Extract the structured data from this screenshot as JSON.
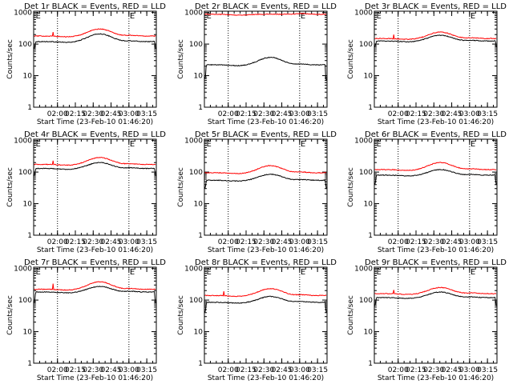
{
  "figure": {
    "colors": {
      "events": "#000000",
      "lld": "#ff0000",
      "axes": "#000000",
      "background": "#ffffff"
    }
  },
  "chart_data": [
    {
      "type": "line",
      "detector": "1r",
      "title": "Det 1r BLACK = Events, RED = LLD",
      "xlabel": "Start Time (23-Feb-10 01:46:20)",
      "ylabel": "Counts/sec",
      "xticks": [
        "02:00",
        "02:15",
        "02:30",
        "02:45",
        "03:00",
        "03:15"
      ],
      "yticks": [
        "1",
        "10",
        "100",
        "1000"
      ],
      "ylim": [
        1,
        1100
      ],
      "scale": "log",
      "time_range_min": [
        -6,
        97
      ],
      "tick_minutes": [
        14,
        29,
        44,
        59,
        74,
        89
      ],
      "vlines_min": [
        14,
        74
      ],
      "annotations": [
        "E",
        "E"
      ],
      "annotation_minutes": [
        -5,
        74
      ],
      "series": [
        {
          "name": "Events",
          "color": "#000000",
          "baseline": 120,
          "peak": 210,
          "start_level": 70,
          "end_level": 70
        },
        {
          "name": "LLD",
          "color": "#ff0000",
          "baseline": 180,
          "peak": 300,
          "spike_value": 240
        }
      ]
    },
    {
      "type": "line",
      "detector": "2r",
      "title": "Det 2r BLACK = Events, RED = LLD",
      "xlabel": "Start Time (23-Feb-10 01:46:20)",
      "ylabel": "Counts/sec",
      "xticks": [
        "02:00",
        "02:15",
        "02:30",
        "02:45",
        "03:00",
        "03:15"
      ],
      "yticks": [
        "1",
        "10",
        "100",
        "1000"
      ],
      "ylim": [
        1,
        1100
      ],
      "scale": "log",
      "time_range_min": [
        -6,
        97
      ],
      "tick_minutes": [
        14,
        29,
        44,
        59,
        74,
        89
      ],
      "vlines_min": [
        14,
        74
      ],
      "annotations": [
        "E",
        "E"
      ],
      "annotation_minutes": [
        -5,
        74
      ],
      "series": [
        {
          "name": "Events",
          "color": "#000000",
          "baseline": 22,
          "peak": 38,
          "start_level": 8,
          "end_level": 7
        },
        {
          "name": "LLD",
          "color": "#ff0000",
          "baseline": 880,
          "peak": 900
        }
      ]
    },
    {
      "type": "line",
      "detector": "3r",
      "title": "Det 3r BLACK = Events, RED = LLD",
      "xlabel": "Start Time (23-Feb-10 01:46:20)",
      "ylabel": "Counts/sec",
      "xticks": [
        "02:00",
        "02:15",
        "02:30",
        "02:45",
        "03:00",
        "03:15"
      ],
      "yticks": [
        "1",
        "10",
        "100",
        "1000"
      ],
      "ylim": [
        1,
        1100
      ],
      "scale": "log",
      "time_range_min": [
        -6,
        97
      ],
      "tick_minutes": [
        14,
        29,
        44,
        59,
        74,
        89
      ],
      "vlines_min": [
        14,
        74
      ],
      "annotations": [
        "E",
        "E"
      ],
      "annotation_minutes": [
        -5,
        74
      ],
      "series": [
        {
          "name": "Events",
          "color": "#000000",
          "baseline": 125,
          "peak": 190,
          "start_level": 80,
          "end_level": 80
        },
        {
          "name": "LLD",
          "color": "#ff0000",
          "baseline": 150,
          "peak": 240,
          "spike_value": 200
        }
      ]
    },
    {
      "type": "line",
      "detector": "4r",
      "title": "Det 4r BLACK = Events, RED = LLD",
      "xlabel": "Start Time (23-Feb-10 01:46:20)",
      "ylabel": "Counts/sec",
      "xticks": [
        "02:00",
        "02:15",
        "02:30",
        "02:45",
        "03:00",
        "03:15"
      ],
      "yticks": [
        "1",
        "10",
        "100",
        "1000"
      ],
      "ylim": [
        1,
        1100
      ],
      "scale": "log",
      "time_range_min": [
        -6,
        97
      ],
      "tick_minutes": [
        14,
        29,
        44,
        59,
        74,
        89
      ],
      "vlines_min": [
        14,
        74
      ],
      "annotations": [
        "E",
        "E"
      ],
      "annotation_minutes": [
        -5,
        74
      ],
      "series": [
        {
          "name": "Events",
          "color": "#000000",
          "baseline": 130,
          "peak": 200,
          "start_level": 75,
          "end_level": 75
        },
        {
          "name": "LLD",
          "color": "#ff0000",
          "baseline": 175,
          "peak": 290,
          "spike_value": 230
        }
      ]
    },
    {
      "type": "line",
      "detector": "5r",
      "title": "Det 5r BLACK = Events, RED = LLD",
      "xlabel": "Start Time (23-Feb-10 01:46:20)",
      "ylabel": "Counts/sec",
      "xticks": [
        "02:00",
        "02:15",
        "02:30",
        "02:45",
        "03:00",
        "03:15"
      ],
      "yticks": [
        "1",
        "10",
        "100",
        "1000"
      ],
      "ylim": [
        1,
        1100
      ],
      "scale": "log",
      "time_range_min": [
        -6,
        97
      ],
      "tick_minutes": [
        14,
        29,
        44,
        59,
        74,
        89
      ],
      "vlines_min": [
        14,
        74
      ],
      "annotations": [
        "E",
        "E"
      ],
      "annotation_minutes": [
        -5,
        74
      ],
      "series": [
        {
          "name": "Events",
          "color": "#000000",
          "baseline": 55,
          "peak": 85,
          "start_level": 30,
          "end_level": 30
        },
        {
          "name": "LLD",
          "color": "#ff0000",
          "baseline": 95,
          "peak": 160
        }
      ]
    },
    {
      "type": "line",
      "detector": "6r",
      "title": "Det 6r BLACK = Events, RED = LLD",
      "xlabel": "Start Time (23-Feb-10 01:46:20)",
      "ylabel": "Counts/sec",
      "xticks": [
        "02:00",
        "02:15",
        "02:30",
        "02:45",
        "03:00",
        "03:15"
      ],
      "yticks": [
        "1",
        "10",
        "100",
        "1000"
      ],
      "ylim": [
        1,
        1100
      ],
      "scale": "log",
      "time_range_min": [
        -6,
        97
      ],
      "tick_minutes": [
        14,
        29,
        44,
        59,
        74,
        89
      ],
      "vlines_min": [
        14,
        74
      ],
      "annotations": [
        "E",
        "E"
      ],
      "annotation_minutes": [
        -5,
        74
      ],
      "series": [
        {
          "name": "Events",
          "color": "#000000",
          "baseline": 80,
          "peak": 120,
          "start_level": 40,
          "end_level": 40
        },
        {
          "name": "LLD",
          "color": "#ff0000",
          "baseline": 120,
          "peak": 200
        }
      ]
    },
    {
      "type": "line",
      "detector": "7r",
      "title": "Det 7r BLACK = Events, RED = LLD",
      "xlabel": "Start Time (23-Feb-10 01:46:20)",
      "ylabel": "Counts/sec",
      "xticks": [
        "02:00",
        "02:15",
        "02:30",
        "02:45",
        "03:00",
        "03:15"
      ],
      "yticks": [
        "1",
        "10",
        "100",
        "1000"
      ],
      "ylim": [
        1,
        1100
      ],
      "scale": "log",
      "time_range_min": [
        -6,
        97
      ],
      "tick_minutes": [
        14,
        29,
        44,
        59,
        74,
        89
      ],
      "vlines_min": [
        14,
        74
      ],
      "annotations": [
        "E",
        "E"
      ],
      "annotation_minutes": [
        -5,
        74
      ],
      "series": [
        {
          "name": "Events",
          "color": "#000000",
          "baseline": 180,
          "peak": 270,
          "start_level": 80,
          "end_level": 80
        },
        {
          "name": "LLD",
          "color": "#ff0000",
          "baseline": 220,
          "peak": 380,
          "spike_value": 330
        }
      ]
    },
    {
      "type": "line",
      "detector": "8r",
      "title": "Det 8r BLACK = Events, RED = LLD",
      "xlabel": "Start Time (23-Feb-10 01:46:20)",
      "ylabel": "Counts/sec",
      "xticks": [
        "02:00",
        "02:15",
        "02:30",
        "02:45",
        "03:00",
        "03:15"
      ],
      "yticks": [
        "1",
        "10",
        "100",
        "1000"
      ],
      "ylim": [
        1,
        1100
      ],
      "scale": "log",
      "time_range_min": [
        -6,
        97
      ],
      "tick_minutes": [
        14,
        29,
        44,
        59,
        74,
        89
      ],
      "vlines_min": [
        14,
        74
      ],
      "annotations": [
        "E",
        "E"
      ],
      "annotation_minutes": [
        -5,
        74
      ],
      "series": [
        {
          "name": "Events",
          "color": "#000000",
          "baseline": 85,
          "peak": 130,
          "start_level": 40,
          "end_level": 40
        },
        {
          "name": "LLD",
          "color": "#ff0000",
          "baseline": 140,
          "peak": 230,
          "spike_value": 190
        }
      ]
    },
    {
      "type": "line",
      "detector": "9r",
      "title": "Det 9r BLACK = Events, RED = LLD",
      "xlabel": "Start Time (23-Feb-10 01:46:20)",
      "ylabel": "Counts/sec",
      "xticks": [
        "02:00",
        "02:15",
        "02:30",
        "02:45",
        "03:00",
        "03:15"
      ],
      "yticks": [
        "1",
        "10",
        "100",
        "1000"
      ],
      "ylim": [
        1,
        1100
      ],
      "scale": "log",
      "time_range_min": [
        -6,
        97
      ],
      "tick_minutes": [
        14,
        29,
        44,
        59,
        74,
        89
      ],
      "vlines_min": [
        14,
        74
      ],
      "annotations": [
        "E",
        "E"
      ],
      "annotation_minutes": [
        -5,
        74
      ],
      "series": [
        {
          "name": "Events",
          "color": "#000000",
          "baseline": 120,
          "peak": 180,
          "start_level": 65,
          "end_level": 65
        },
        {
          "name": "LLD",
          "color": "#ff0000",
          "baseline": 160,
          "peak": 250,
          "spike_value": 210
        }
      ]
    }
  ]
}
